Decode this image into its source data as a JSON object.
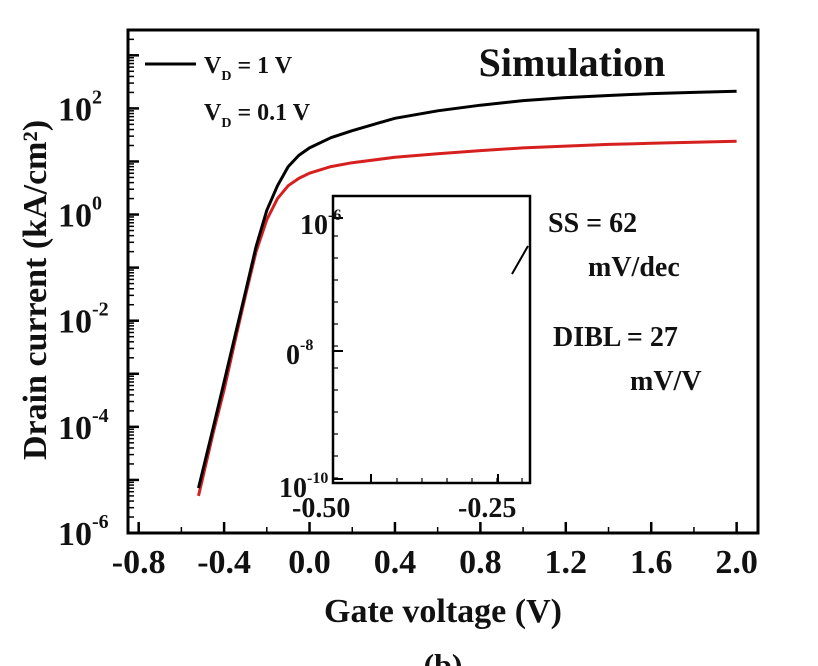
{
  "chart_data": [
    {
      "type": "line",
      "title": "Simulation",
      "xlabel": "Gate voltage (V)",
      "ylabel": "Drain current (kA/cm²)",
      "yscale": "log",
      "xlim": [
        -0.85,
        2.1
      ],
      "ylim": [
        1e-06,
        3000
      ],
      "xticks": [
        -0.8,
        -0.4,
        0.0,
        0.4,
        0.8,
        1.2,
        1.6,
        2.0
      ],
      "xtick_labels": [
        "-0.8",
        "-0.4",
        "0.0",
        "0.4",
        "0.8",
        "1.2",
        "1.6",
        "2.0"
      ],
      "ytick_exponents": [
        -6,
        -4,
        -2,
        0,
        2
      ],
      "ytick_base": "10",
      "grid": false,
      "legend_position": "top-left",
      "series": [
        {
          "name": "V_D = 1 V",
          "color": "#000000",
          "x": [
            -0.52,
            -0.45,
            -0.4,
            -0.35,
            -0.3,
            -0.25,
            -0.2,
            -0.15,
            -0.1,
            -0.05,
            0.0,
            0.1,
            0.2,
            0.3,
            0.4,
            0.6,
            0.8,
            1.0,
            1.2,
            1.4,
            1.6,
            1.8,
            2.0
          ],
          "y": [
            7e-06,
            0.0001,
            0.0007,
            0.005,
            0.035,
            0.25,
            1.2,
            3.5,
            8,
            13,
            18,
            28,
            38,
            50,
            65,
            90,
            115,
            140,
            160,
            175,
            190,
            200,
            210
          ]
        },
        {
          "name": "V_D = 0.1 V",
          "color": "#d62020",
          "x": [
            -0.52,
            -0.45,
            -0.4,
            -0.35,
            -0.3,
            -0.25,
            -0.2,
            -0.15,
            -0.1,
            -0.05,
            0.0,
            0.1,
            0.2,
            0.4,
            0.6,
            0.8,
            1.0,
            1.2,
            1.4,
            1.6,
            1.8,
            2.0
          ],
          "y": [
            5e-06,
            8e-05,
            0.0005,
            0.004,
            0.03,
            0.2,
            0.8,
            2.0,
            3.5,
            4.8,
            6,
            8,
            9.5,
            12,
            14,
            16,
            18,
            19.5,
            21,
            22,
            23,
            24
          ]
        }
      ],
      "annotations": [
        {
          "text": "SS = 62",
          "line2": "mV/dec"
        },
        {
          "text": "DIBL = 27",
          "line2": "mV/V"
        }
      ]
    },
    {
      "type": "line",
      "role": "inset",
      "yscale": "log",
      "xlim": [
        -0.55,
        -0.22
      ],
      "ylim": [
        1e-10,
        1e-06
      ],
      "xtick_labels": [
        "-0.50",
        "-0.25"
      ],
      "ytick_labels": [
        "10",
        "0",
        "10"
      ],
      "ytick_exponents": [
        "-6",
        "-8",
        "-10"
      ]
    }
  ],
  "caption": "(b)"
}
